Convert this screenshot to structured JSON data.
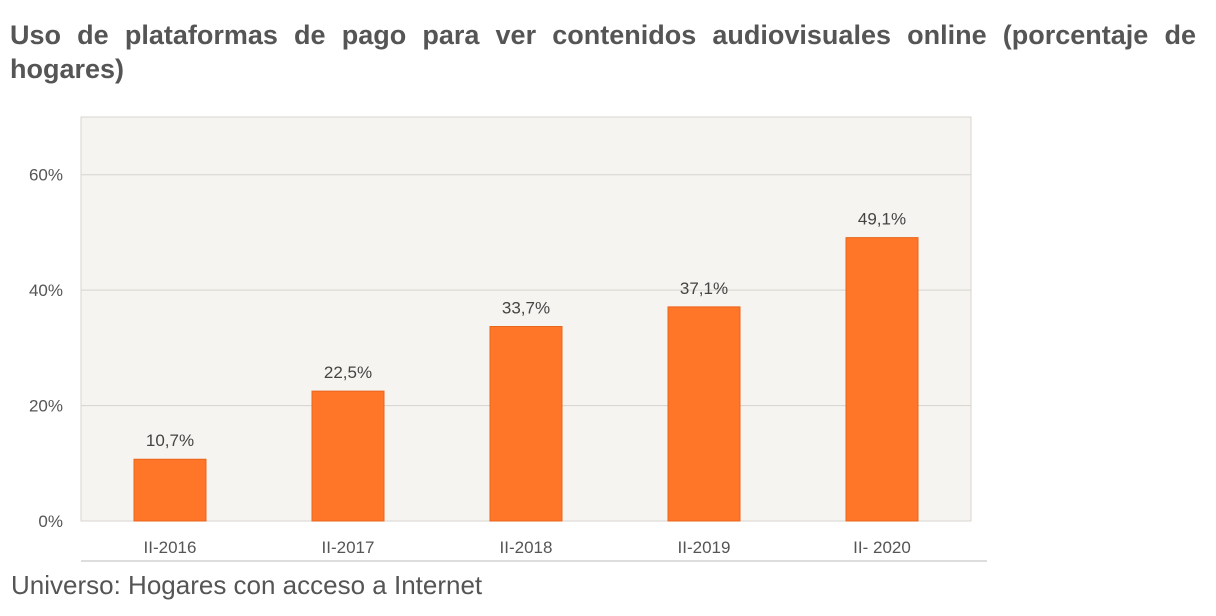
{
  "chart_data": {
    "type": "bar",
    "title": "Uso de plataformas de pago para ver contenidos audiovisuales online (porcentaje de hogares)",
    "categories": [
      "II-2016",
      "II-2017",
      "II-2018",
      "II-2019",
      "II- 2020"
    ],
    "values": [
      10.7,
      22.5,
      33.7,
      37.1,
      49.1
    ],
    "value_labels": [
      "10,7%",
      "22,5%",
      "33,7%",
      "37,1%",
      "49,1%"
    ],
    "y_ticks": [
      0,
      20,
      40,
      60
    ],
    "y_tick_labels": [
      "0%",
      "20%",
      "40%",
      "60%"
    ],
    "ylim": [
      0,
      70
    ],
    "xlabel": "",
    "ylabel": "",
    "grid": true,
    "bar_color": "#FF7628",
    "plot_background": "#F6F4F0",
    "footnote": "Universo: Hogares con acceso a Internet"
  }
}
